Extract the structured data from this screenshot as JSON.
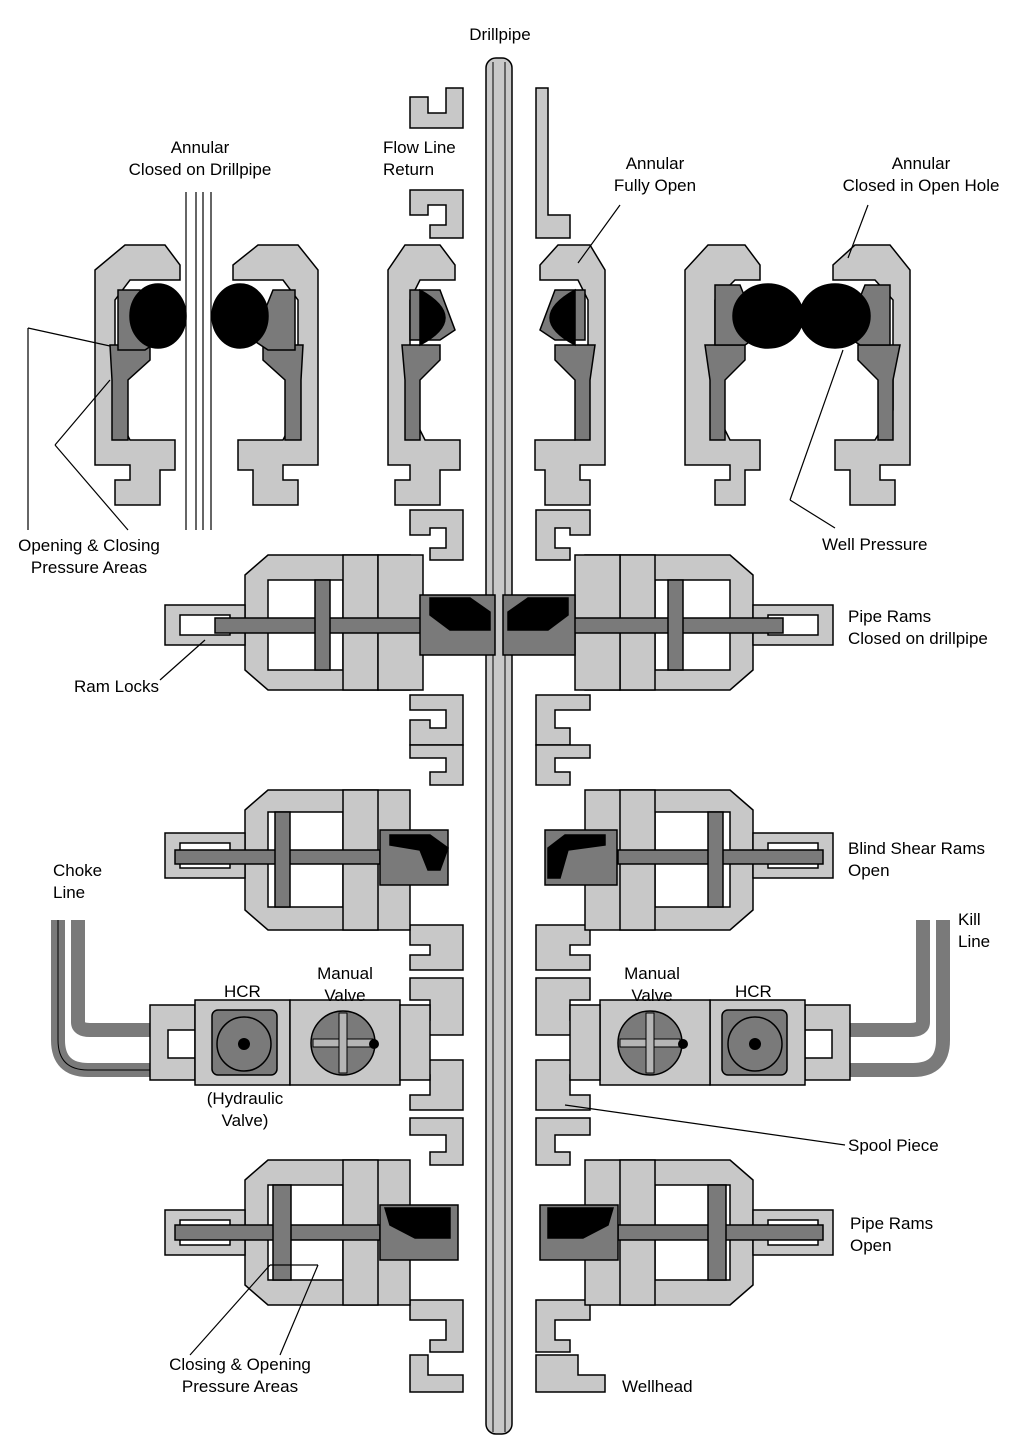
{
  "labels": {
    "drillpipe": "Drillpipe",
    "annular_closed_dp": [
      "Annular",
      "Closed on Drillpipe"
    ],
    "flow_line": [
      "Flow Line",
      "Return"
    ],
    "annular_open": [
      "Annular",
      "Fully Open"
    ],
    "annular_open_hole": [
      "Annular",
      "Closed in Open Hole"
    ],
    "open_close_areas": [
      "Opening & Closing",
      "Pressure Areas"
    ],
    "well_pressure": "Well Pressure",
    "pipe_rams_closed": [
      "Pipe Rams",
      "Closed on drillpipe"
    ],
    "ram_locks": "Ram Locks",
    "blind_shear": [
      "Blind Shear Rams",
      "Open"
    ],
    "choke_line": [
      "Choke",
      "Line"
    ],
    "kill_line": [
      "Kill",
      "Line"
    ],
    "hcr_left": "HCR",
    "hcr_right": "HCR",
    "manual_left": [
      "Manual",
      "Valve"
    ],
    "manual_right": [
      "Manual",
      "Valve"
    ],
    "hydraulic": [
      "(Hydraulic",
      "Valve)"
    ],
    "spool_piece": "Spool Piece",
    "pipe_rams_open": [
      "Pipe Rams",
      "Open"
    ],
    "close_open_areas": [
      "Closing & Opening",
      "Pressure Areas"
    ],
    "wellhead": "Wellhead"
  },
  "colors": {
    "body": "#c8c8c8",
    "ram": "#7a7a7a",
    "rubber": "#000000",
    "outline": "#000000",
    "background": "#ffffff"
  }
}
